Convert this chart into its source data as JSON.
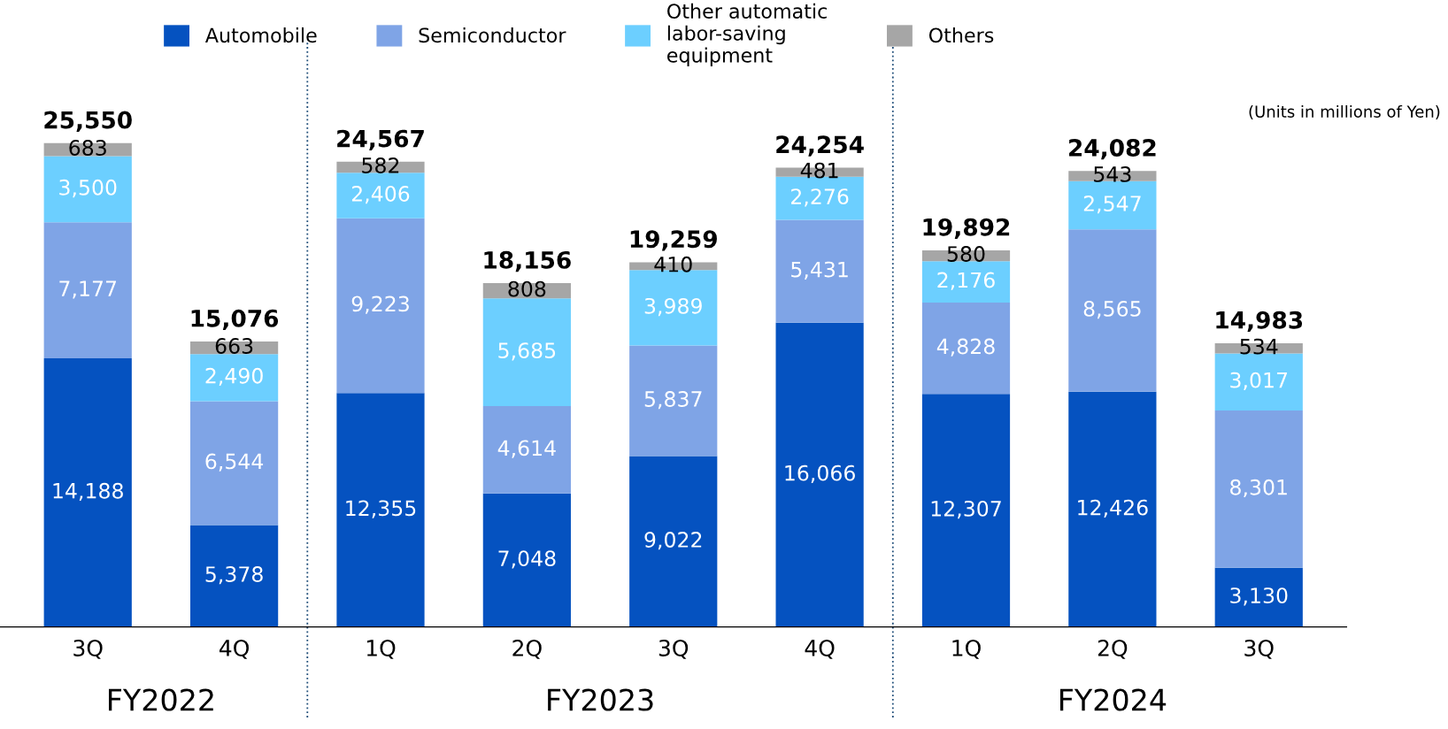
{
  "chart_data": {
    "type": "bar",
    "stacked": true,
    "legend": "top",
    "categories": [
      "3Q",
      "4Q",
      "1Q",
      "2Q",
      "3Q",
      "4Q",
      "1Q",
      "2Q",
      "3Q"
    ],
    "series": [
      {
        "name": "Automobile",
        "color": "#0552c0",
        "values": [
          14188,
          5378,
          12355,
          7048,
          9022,
          16066,
          12307,
          12426,
          3130
        ],
        "value_labels": [
          "14,188",
          "5,378",
          "12,355",
          "7,048",
          "9,022",
          "16,066",
          "12,307",
          "12,426",
          "3,130"
        ]
      },
      {
        "name": "Semiconductor",
        "color": "#7fa4e6",
        "values": [
          7177,
          6544,
          9223,
          4614,
          5837,
          5431,
          4828,
          8565,
          8301
        ],
        "value_labels": [
          "7,177",
          "6,544",
          "9,223",
          "4,614",
          "5,837",
          "5,431",
          "4,828",
          "8,565",
          "8,301"
        ]
      },
      {
        "name": "Other automatic\nlabor-saving\nequipment",
        "color": "#6ccfff",
        "values": [
          3500,
          2490,
          2406,
          5685,
          3989,
          2276,
          2176,
          2547,
          3017
        ],
        "value_labels": [
          "3,500",
          "2,490",
          "2,406",
          "5,685",
          "3,989",
          "2,276",
          "2,176",
          "2,547",
          "3,017"
        ]
      },
      {
        "name": "Others",
        "color": "#a6a6a6",
        "values": [
          683,
          663,
          582,
          808,
          410,
          481,
          580,
          543,
          534
        ],
        "value_labels": [
          "683",
          "663",
          "582",
          "808",
          "410",
          "481",
          "580",
          "543",
          "534"
        ]
      }
    ],
    "totals": [
      "25,550",
      "15,076",
      "24,567",
      "18,156",
      "19,259",
      "24,254",
      "19,892",
      "24,082",
      "14,983"
    ],
    "annotations": [
      "FY2022",
      "FY2023",
      "FY2024",
      "(Units in millions of Yen)"
    ]
  }
}
